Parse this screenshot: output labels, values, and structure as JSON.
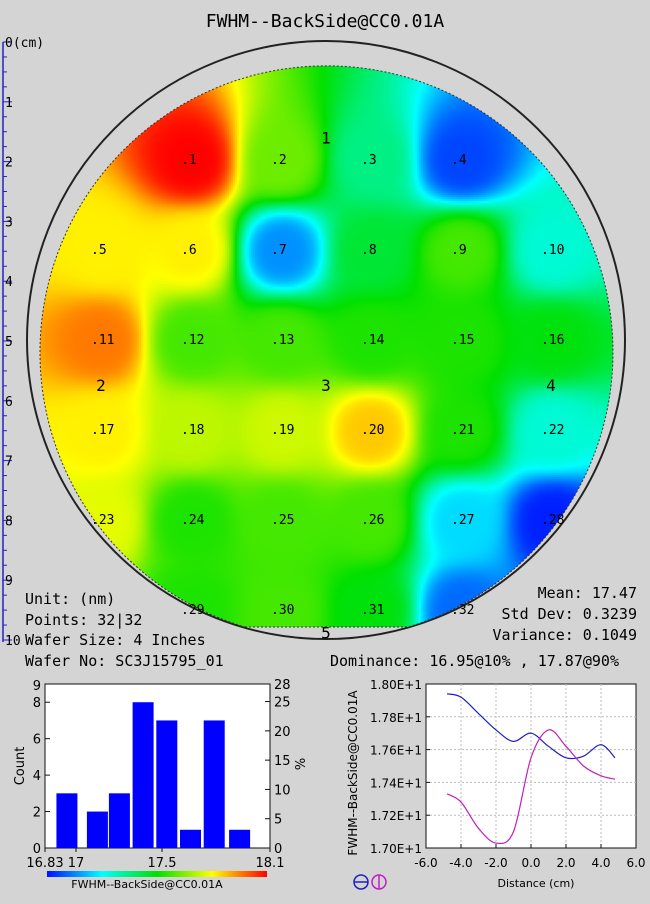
{
  "title": "FWHM--BackSide@CC0.01A",
  "ruler": {
    "unit_label": "0(cm)",
    "ticks": [
      1,
      2,
      3,
      4,
      5,
      6,
      7,
      8,
      9,
      10
    ]
  },
  "wafer_map": {
    "sites": [
      {
        "label": ".1",
        "x": -3,
        "y": 4,
        "value": 18.1
      },
      {
        "label": ".2",
        "x": -1,
        "y": 4,
        "value": 17.6
      },
      {
        "label": ".3",
        "x": 1,
        "y": 4,
        "value": 17.3
      },
      {
        "label": ".4",
        "x": 3,
        "y": 4,
        "value": 16.9
      },
      {
        "label": ".5",
        "x": -5,
        "y": 2,
        "value": 17.8
      },
      {
        "label": ".6",
        "x": -3,
        "y": 2,
        "value": 17.8
      },
      {
        "label": ".7",
        "x": -1,
        "y": 2,
        "value": 17.0
      },
      {
        "label": ".8",
        "x": 1,
        "y": 2,
        "value": 17.4
      },
      {
        "label": ".9",
        "x": 3,
        "y": 2,
        "value": 17.55
      },
      {
        "label": ".10",
        "x": 5,
        "y": 2,
        "value": 17.2
      },
      {
        "label": ".11",
        "x": -5,
        "y": 0,
        "value": 17.95
      },
      {
        "label": ".12",
        "x": -3,
        "y": 0,
        "value": 17.55
      },
      {
        "label": ".13",
        "x": -1,
        "y": 0,
        "value": 17.55
      },
      {
        "label": ".14",
        "x": 1,
        "y": 0,
        "value": 17.5
      },
      {
        "label": ".15",
        "x": 3,
        "y": 0,
        "value": 17.5
      },
      {
        "label": ".16",
        "x": 5,
        "y": 0,
        "value": 17.45
      },
      {
        "label": ".17",
        "x": -5,
        "y": -2,
        "value": 17.8
      },
      {
        "label": ".18",
        "x": -3,
        "y": -2,
        "value": 17.7
      },
      {
        "label": ".19",
        "x": -1,
        "y": -2,
        "value": 17.72
      },
      {
        "label": ".20",
        "x": 1,
        "y": -2,
        "value": 17.85
      },
      {
        "label": ".21",
        "x": 3,
        "y": -2,
        "value": 17.5
      },
      {
        "label": ".22",
        "x": 5,
        "y": -2,
        "value": 17.2
      },
      {
        "label": ".23",
        "x": -5,
        "y": -4,
        "value": 17.75
      },
      {
        "label": ".24",
        "x": -3,
        "y": -4,
        "value": 17.5
      },
      {
        "label": ".25",
        "x": -1,
        "y": -4,
        "value": 17.55
      },
      {
        "label": ".26",
        "x": 1,
        "y": -4,
        "value": 17.55
      },
      {
        "label": ".27",
        "x": 3,
        "y": -4,
        "value": 17.1
      },
      {
        "label": ".28",
        "x": 5,
        "y": -4,
        "value": 16.85
      },
      {
        "label": ".29",
        "x": -3,
        "y": -6,
        "value": 17.5
      },
      {
        "label": ".30",
        "x": -1,
        "y": -6,
        "value": 17.55
      },
      {
        "label": ".31",
        "x": 1,
        "y": -6,
        "value": 17.45
      },
      {
        "label": ".32",
        "x": 3,
        "y": -6,
        "value": 16.95
      }
    ],
    "markers": [
      {
        "label": "1",
        "x": 0,
        "y": 4.5
      },
      {
        "label": "2",
        "x": -5,
        "y": -1
      },
      {
        "label": "3",
        "x": 0,
        "y": -1
      },
      {
        "label": "4",
        "x": 5,
        "y": -1
      },
      {
        "label": "5",
        "x": 0,
        "y": -6.5
      }
    ]
  },
  "info": {
    "unit": "Unit: (nm)",
    "points": "Points: 32|32",
    "wafer_size": "Wafer Size: 4 Inches",
    "wafer_no": "Wafer No: SC3J15795_01",
    "mean": "Mean: 17.47",
    "std_dev": "Std Dev: 0.3239",
    "variance": "Variance: 0.1049",
    "dominance": "Dominance: 16.95@10% , 17.87@90%"
  },
  "histogram": {
    "ylabel": "Count",
    "ylabel_right": "%",
    "xlabel": "FWHM--BackSide@CC0.01A",
    "left_ticks": [
      "0",
      "2",
      "4",
      "6",
      "8"
    ],
    "left_top": "9",
    "right_ticks": [
      "0",
      "5",
      "10",
      "15",
      "20",
      "25",
      "28"
    ],
    "x_ticks": [
      "16.83",
      "17",
      "17.5",
      "18.1"
    ]
  },
  "line_plot": {
    "ylabel": "FWHM--BackSide@CC0.01A",
    "xlabel": "Distance (cm)",
    "y_ticks": [
      "1.70E+1",
      "1.72E+1",
      "1.74E+1",
      "1.76E+1",
      "1.78E+1",
      "1.80E+1"
    ],
    "x_ticks": [
      "-6.0",
      "-4.0",
      "-2.0",
      "0.0",
      "2.0",
      "4.0",
      "6.0"
    ]
  },
  "chart_data": [
    {
      "type": "heatmap",
      "title": "FWHM--BackSide@CC0.01A",
      "colorscale_range": [
        16.83,
        18.1
      ]
    },
    {
      "type": "bar",
      "x": [
        16.93,
        17.11,
        17.24,
        17.38,
        17.52,
        17.66,
        17.8,
        17.95
      ],
      "values": [
        3,
        2,
        3,
        8,
        7,
        1,
        7,
        1
      ],
      "ylim": [
        0,
        9
      ],
      "ylabel": "Count",
      "xlim": [
        16.83,
        18.1
      ]
    },
    {
      "type": "line",
      "xlabel": "Distance (cm)",
      "xlim": [
        -6,
        6
      ],
      "ylim": [
        17.0,
        18.0
      ],
      "series": [
        {
          "color": "#2020c0",
          "x": [
            -4.8,
            -4,
            -3,
            -2,
            -1,
            0,
            1,
            2,
            3,
            4,
            4.8
          ],
          "values": [
            17.94,
            17.92,
            17.82,
            17.72,
            17.65,
            17.7,
            17.62,
            17.55,
            17.56,
            17.63,
            17.55
          ]
        },
        {
          "color": "#c020c0",
          "x": [
            -4.8,
            -4,
            -3,
            -2,
            -1,
            0,
            1,
            2,
            3,
            4,
            4.8
          ],
          "values": [
            17.33,
            17.28,
            17.12,
            17.03,
            17.1,
            17.55,
            17.72,
            17.62,
            17.5,
            17.44,
            17.42
          ]
        }
      ]
    }
  ]
}
